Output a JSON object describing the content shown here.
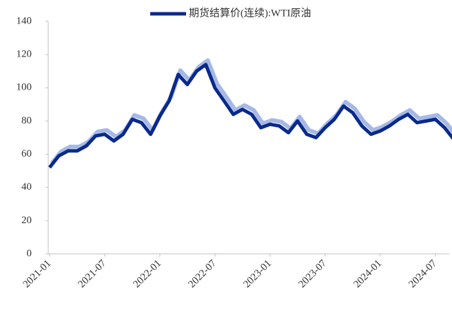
{
  "chart_data": {
    "type": "line",
    "x": [
      "2021-01",
      "2021-02",
      "2021-03",
      "2021-04",
      "2021-05",
      "2021-06",
      "2021-07",
      "2021-08",
      "2021-09",
      "2021-10",
      "2021-11",
      "2021-12",
      "2022-01",
      "2022-02",
      "2022-03",
      "2022-04",
      "2022-05",
      "2022-06",
      "2022-07",
      "2022-08",
      "2022-09",
      "2022-10",
      "2022-11",
      "2022-12",
      "2023-01",
      "2023-02",
      "2023-03",
      "2023-04",
      "2023-05",
      "2023-06",
      "2023-07",
      "2023-08",
      "2023-09",
      "2023-10",
      "2023-11",
      "2023-12",
      "2024-01",
      "2024-02",
      "2024-03",
      "2024-04",
      "2024-05",
      "2024-06",
      "2024-07",
      "2024-08",
      "2024-09"
    ],
    "series": [
      {
        "name": "期货结算价(连续):WTI原油",
        "color": "#0a2a8a",
        "shadow_color": "#a6b9e6",
        "values": [
          52,
          59,
          62,
          62,
          65,
          71,
          72,
          68,
          72,
          81,
          79,
          72,
          83,
          92,
          108,
          102,
          110,
          114,
          100,
          92,
          84,
          87,
          84,
          76,
          78,
          77,
          73,
          80,
          72,
          70,
          76,
          81,
          89,
          85,
          77,
          72,
          74,
          77,
          81,
          84,
          79,
          80,
          81,
          76,
          69
        ]
      }
    ],
    "xticks": [
      "2021-01",
      "2021-07",
      "2022-01",
      "2022-07",
      "2023-01",
      "2023-07",
      "2024-01",
      "2024-07"
    ],
    "ylim": [
      0,
      140
    ],
    "yticks": [
      0,
      20,
      40,
      60,
      80,
      100,
      120,
      140
    ],
    "legend": "top"
  }
}
